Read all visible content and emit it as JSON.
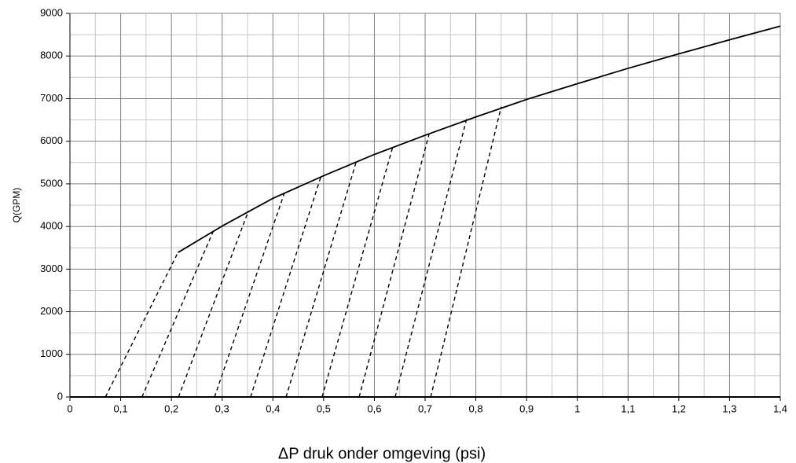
{
  "chart_data": {
    "type": "line",
    "xlabel": "ΔP druk onder omgeving (psi)",
    "ylabel": "Q(GPM)",
    "xlim": [
      0,
      1.4
    ],
    "ylim": [
      0,
      9000
    ],
    "xticks": [
      0,
      {
        "value": 0.1,
        "label": "0,1"
      },
      {
        "value": 0.2,
        "label": "0,2"
      },
      {
        "value": 0.3,
        "label": "0,3"
      },
      {
        "value": 0.4,
        "label": "0,4"
      },
      {
        "value": 0.5,
        "label": "0,5"
      },
      {
        "value": 0.6,
        "label": "0,6"
      },
      {
        "value": 0.7,
        "label": "0,7"
      },
      {
        "value": 0.8,
        "label": "0,8"
      },
      {
        "value": 0.9,
        "label": "0,9"
      },
      1,
      {
        "value": 1.1,
        "label": "1,1"
      },
      {
        "value": 1.2,
        "label": "1,2"
      },
      {
        "value": 1.3,
        "label": "1,3"
      },
      {
        "value": 1.4,
        "label": "1,4"
      }
    ],
    "yticks": [
      0,
      1000,
      2000,
      3000,
      4000,
      5000,
      6000,
      7000,
      8000,
      9000
    ],
    "xminorticks": [
      0.05,
      0.15,
      0.25,
      0.35,
      0.45,
      0.55,
      0.65,
      0.75,
      0.85,
      0.95,
      1.05,
      1.15,
      1.25,
      1.35
    ],
    "yminorticks": [
      500,
      1500,
      2500,
      3500,
      4500,
      5500,
      6500,
      7500,
      8500
    ],
    "grid": true,
    "series": [
      {
        "color": "#000000",
        "style": "solid",
        "x": [
          0.213,
          0.3,
          0.4,
          0.5,
          0.6,
          0.7,
          0.8,
          0.9,
          1.0,
          1.1,
          1.2,
          1.3,
          1.4
        ],
        "values": [
          3390,
          4010,
          4660,
          5190,
          5690,
          6140,
          6570,
          6980,
          7350,
          7710,
          8050,
          8380,
          8700
        ]
      },
      {
        "color": "#000000",
        "style": "dashed",
        "x": [
          0.07,
          0.213
        ],
        "values": [
          0,
          3390
        ]
      },
      {
        "color": "#000000",
        "style": "dashed",
        "x": [
          0.142,
          0.285
        ],
        "values": [
          0,
          3960
        ]
      },
      {
        "color": "#000000",
        "style": "dashed",
        "x": [
          0.214,
          0.352
        ],
        "values": [
          0,
          4370
        ]
      },
      {
        "color": "#000000",
        "style": "dashed",
        "x": [
          0.285,
          0.424
        ],
        "values": [
          0,
          4830
        ]
      },
      {
        "color": "#000000",
        "style": "dashed",
        "x": [
          0.356,
          0.496
        ],
        "values": [
          0,
          5220
        ]
      },
      {
        "color": "#000000",
        "style": "dashed",
        "x": [
          0.426,
          0.565
        ],
        "values": [
          0,
          5550
        ]
      },
      {
        "color": "#000000",
        "style": "dashed",
        "x": [
          0.497,
          0.637
        ],
        "values": [
          0,
          5900
        ]
      },
      {
        "color": "#000000",
        "style": "dashed",
        "x": [
          0.57,
          0.709
        ],
        "values": [
          0,
          6220
        ]
      },
      {
        "color": "#000000",
        "style": "dashed",
        "x": [
          0.641,
          0.782
        ],
        "values": [
          0,
          6530
        ]
      },
      {
        "color": "#000000",
        "style": "dashed",
        "x": [
          0.711,
          0.85
        ],
        "values": [
          0,
          6810
        ]
      }
    ]
  }
}
